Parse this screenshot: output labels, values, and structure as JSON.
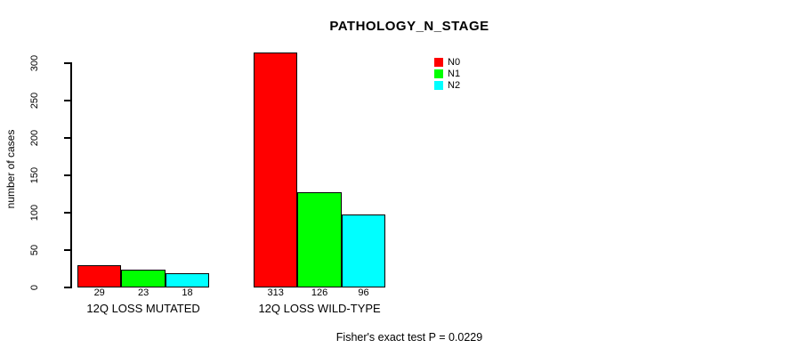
{
  "title": "PATHOLOGY_N_STAGE",
  "y_axis_label": "number of cases",
  "annotation": "Fisher's exact test P = 0.0229",
  "legend": {
    "position": "top-right",
    "items": [
      {
        "label": "N0",
        "color": "#ff0000"
      },
      {
        "label": "N1",
        "color": "#00ff00"
      },
      {
        "label": "N2",
        "color": "#00ffff"
      }
    ]
  },
  "chart_data": {
    "type": "bar",
    "title": "PATHOLOGY_N_STAGE",
    "categories": [
      "12Q LOSS MUTATED",
      "12Q LOSS WILD-TYPE"
    ],
    "series": [
      {
        "name": "N0",
        "color": "#ff0000",
        "values": [
          29,
          313
        ]
      },
      {
        "name": "N1",
        "color": "#00ff00",
        "values": [
          23,
          126
        ]
      },
      {
        "name": "N2",
        "color": "#00ffff",
        "values": [
          18,
          96
        ]
      }
    ],
    "bar_value_labels": [
      [
        29,
        23,
        18
      ],
      [
        313,
        126,
        96
      ]
    ],
    "xlabel": "",
    "ylabel": "number of cases",
    "yticks": [
      0,
      50,
      100,
      150,
      200,
      250,
      300
    ],
    "ylim": [
      0,
      313
    ],
    "grid": false,
    "legend_position": "top-right",
    "annotation": "Fisher's exact test P = 0.0229"
  }
}
